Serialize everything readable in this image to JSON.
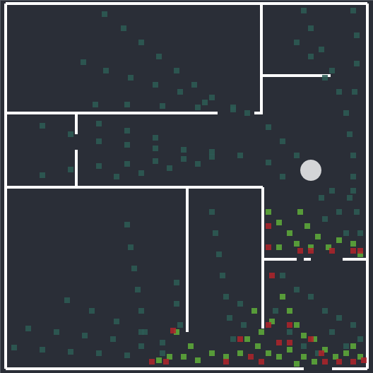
{
  "chart_data": {
    "type": "scatter",
    "xlim": [
      0,
      528
    ],
    "ylim": [
      0,
      528
    ],
    "xticks": [],
    "yticks": [],
    "tick_labels": false,
    "grid": false,
    "marker": "square",
    "walls": [
      [
        8,
        5,
        520,
        5
      ],
      [
        8,
        5,
        8,
        522
      ],
      [
        8,
        522,
        430,
        522
      ],
      [
        470,
        522,
        520,
        522
      ],
      [
        520,
        5,
        520,
        522
      ],
      [
        370,
        5,
        370,
        160
      ],
      [
        370,
        107,
        468,
        107
      ],
      [
        8,
        160,
        308,
        160
      ],
      [
        360,
        160,
        372,
        160
      ],
      [
        108,
        160,
        108,
        190
      ],
      [
        108,
        212,
        108,
        265
      ],
      [
        8,
        265,
        372,
        265
      ],
      [
        265,
        265,
        265,
        470
      ],
      [
        372,
        265,
        372,
        465
      ],
      [
        372,
        367,
        420,
        367
      ],
      [
        430,
        367,
        440,
        367
      ],
      [
        485,
        367,
        520,
        367
      ]
    ],
    "robot": {
      "x": 440,
      "y": 241,
      "size": 15
    },
    "series": [
      {
        "color": "#2d5c55",
        "values": [
          [
            148,
            20
          ],
          [
            175,
            40
          ],
          [
            200,
            60
          ],
          [
            225,
            80
          ],
          [
            250,
            100
          ],
          [
            275,
            120
          ],
          [
            300,
            138
          ],
          [
            330,
            152
          ],
          [
            118,
            88
          ],
          [
            150,
            100
          ],
          [
            185,
            110
          ],
          [
            220,
            120
          ],
          [
            255,
            130
          ],
          [
            290,
            145
          ],
          [
            330,
            155
          ],
          [
            135,
            148
          ],
          [
            180,
            148
          ],
          [
            230,
            150
          ],
          [
            280,
            152
          ],
          [
            60,
            178
          ],
          [
            100,
            190
          ],
          [
            140,
            200
          ],
          [
            180,
            205
          ],
          [
            220,
            210
          ],
          [
            260,
            212
          ],
          [
            300,
            215
          ],
          [
            340,
            220
          ],
          [
            60,
            248
          ],
          [
            100,
            240
          ],
          [
            140,
            235
          ],
          [
            180,
            232
          ],
          [
            220,
            228
          ],
          [
            260,
            225
          ],
          [
            300,
            222
          ],
          [
            165,
            250
          ],
          [
            200,
            245
          ],
          [
            240,
            238
          ],
          [
            280,
            232
          ],
          [
            140,
            175
          ],
          [
            180,
            185
          ],
          [
            220,
            195
          ],
          [
            430,
            15
          ],
          [
            440,
            40
          ],
          [
            455,
            70
          ],
          [
            470,
            100
          ],
          [
            480,
            130
          ],
          [
            490,
            160
          ],
          [
            495,
            190
          ],
          [
            500,
            220
          ],
          [
            500,
            250
          ],
          [
            495,
            280
          ],
          [
            420,
            60
          ],
          [
            440,
            80
          ],
          [
            460,
            110
          ],
          [
            500,
            15
          ],
          [
            505,
            50
          ],
          [
            505,
            90
          ],
          [
            502,
            130
          ],
          [
            350,
            160
          ],
          [
            380,
            180
          ],
          [
            400,
            200
          ],
          [
            420,
            220
          ],
          [
            380,
            230
          ],
          [
            400,
            250
          ],
          [
            470,
            270
          ],
          [
            480,
            300
          ],
          [
            490,
            330
          ],
          [
            500,
            270
          ],
          [
            505,
            300
          ],
          [
            510,
            330
          ],
          [
            455,
            280
          ],
          [
            460,
            310
          ],
          [
            180,
            318
          ],
          [
            185,
            350
          ],
          [
            190,
            380
          ],
          [
            195,
            410
          ],
          [
            200,
            440
          ],
          [
            205,
            470
          ],
          [
            95,
            425
          ],
          [
            130,
            440
          ],
          [
            165,
            455
          ],
          [
            200,
            470
          ],
          [
            230,
            485
          ],
          [
            40,
            465
          ],
          [
            80,
            470
          ],
          [
            120,
            475
          ],
          [
            160,
            480
          ],
          [
            200,
            490
          ],
          [
            230,
            500
          ],
          [
            20,
            492
          ],
          [
            60,
            495
          ],
          [
            100,
            498
          ],
          [
            140,
            500
          ],
          [
            180,
            503
          ],
          [
            250,
            400
          ],
          [
            250,
            430
          ],
          [
            255,
            460
          ],
          [
            300,
            300
          ],
          [
            305,
            330
          ],
          [
            310,
            360
          ],
          [
            315,
            390
          ],
          [
            320,
            420
          ],
          [
            325,
            450
          ],
          [
            330,
            480
          ],
          [
            340,
            430
          ],
          [
            345,
            460
          ],
          [
            400,
            390
          ],
          [
            420,
            410
          ],
          [
            440,
            420
          ],
          [
            460,
            440
          ],
          [
            480,
            450
          ],
          [
            500,
            460
          ],
          [
            390,
            440
          ],
          [
            410,
            470
          ],
          [
            430,
            490
          ],
          [
            450,
            500
          ],
          [
            470,
            470
          ],
          [
            490,
            490
          ],
          [
            510,
            480
          ]
        ]
      },
      {
        "color": "#5fae3a",
        "values": [
          [
            380,
            300
          ],
          [
            395,
            315
          ],
          [
            410,
            330
          ],
          [
            420,
            345
          ],
          [
            435,
            320
          ],
          [
            450,
            335
          ],
          [
            465,
            350
          ],
          [
            480,
            340
          ],
          [
            395,
            350
          ],
          [
            440,
            350
          ],
          [
            425,
            300
          ],
          [
            500,
            345
          ],
          [
            510,
            360
          ],
          [
            400,
            420
          ],
          [
            410,
            440
          ],
          [
            420,
            460
          ],
          [
            430,
            475
          ],
          [
            445,
            480
          ],
          [
            460,
            495
          ],
          [
            475,
            505
          ],
          [
            490,
            500
          ],
          [
            500,
            490
          ],
          [
            510,
            505
          ],
          [
            350,
            480
          ],
          [
            365,
            490
          ],
          [
            380,
            500
          ],
          [
            395,
            505
          ],
          [
            410,
            495
          ],
          [
            340,
            500
          ],
          [
            320,
            505
          ],
          [
            300,
            500
          ],
          [
            280,
            510
          ],
          [
            260,
            505
          ],
          [
            240,
            505
          ],
          [
            225,
            510
          ],
          [
            430,
            505
          ],
          [
            445,
            512
          ],
          [
            420,
            515
          ],
          [
            250,
            470
          ],
          [
            270,
            490
          ],
          [
            370,
            470
          ],
          [
            385,
            455
          ],
          [
            360,
            440
          ]
        ]
      },
      {
        "color": "#b0232a",
        "values": [
          [
            380,
            320
          ],
          [
            380,
            350
          ],
          [
            425,
            355
          ],
          [
            440,
            355
          ],
          [
            470,
            355
          ],
          [
            500,
            355
          ],
          [
            510,
            355
          ],
          [
            385,
            390
          ],
          [
            380,
            460
          ],
          [
            410,
            460
          ],
          [
            245,
            468
          ],
          [
            340,
            480
          ],
          [
            355,
            505
          ],
          [
            370,
            512
          ],
          [
            395,
            485
          ],
          [
            410,
            485
          ],
          [
            440,
            480
          ],
          [
            460,
            512
          ],
          [
            480,
            512
          ],
          [
            500,
            512
          ],
          [
            515,
            510
          ],
          [
            215,
            512
          ],
          [
            235,
            512
          ],
          [
            320,
            512
          ],
          [
            455,
            500
          ]
        ]
      }
    ]
  }
}
